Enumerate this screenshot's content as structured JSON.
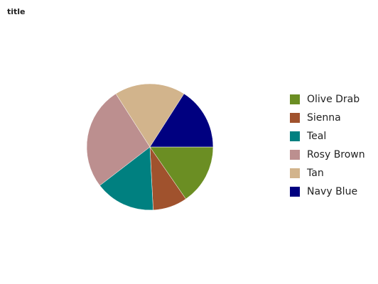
{
  "chart_data": {
    "type": "pie",
    "title": "title",
    "legend_position": "right",
    "series": [
      {
        "name": "Olive Drab",
        "value": 14,
        "color": "#6b8e23"
      },
      {
        "name": "Sienna",
        "value": 8,
        "color": "#a0522d"
      },
      {
        "name": "Teal",
        "value": 14,
        "color": "#008080"
      },
      {
        "name": "Rosy Brown",
        "value": 24,
        "color": "#bc8f8f"
      },
      {
        "name": "Tan",
        "value": 16.5,
        "color": "#d2b48c"
      },
      {
        "name": "Navy Blue",
        "value": 14.5,
        "color": "#000080"
      }
    ]
  }
}
